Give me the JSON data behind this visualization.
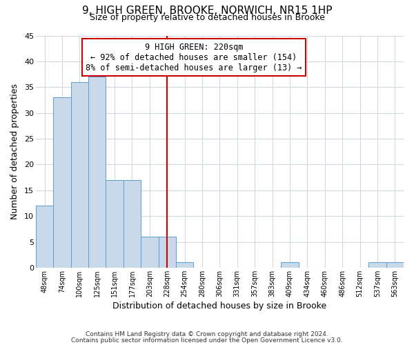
{
  "title": "9, HIGH GREEN, BROOKE, NORWICH, NR15 1HP",
  "subtitle": "Size of property relative to detached houses in Brooke",
  "xlabel": "Distribution of detached houses by size in Brooke",
  "ylabel": "Number of detached properties",
  "bin_labels": [
    "48sqm",
    "74sqm",
    "100sqm",
    "125sqm",
    "151sqm",
    "177sqm",
    "203sqm",
    "228sqm",
    "254sqm",
    "280sqm",
    "306sqm",
    "331sqm",
    "357sqm",
    "383sqm",
    "409sqm",
    "434sqm",
    "460sqm",
    "486sqm",
    "512sqm",
    "537sqm",
    "563sqm"
  ],
  "bar_heights": [
    12,
    33,
    36,
    37,
    17,
    17,
    6,
    6,
    1,
    0,
    0,
    0,
    0,
    0,
    1,
    0,
    0,
    0,
    0,
    1,
    1
  ],
  "bar_color": "#c8d9ea",
  "bar_edge_color": "#5b9bd5",
  "vline_x": 7,
  "vline_color": "#cc0000",
  "annotation_text": "9 HIGH GREEN: 220sqm\n← 92% of detached houses are smaller (154)\n8% of semi-detached houses are larger (13) →",
  "annotation_box_edgecolor": "#cc0000",
  "ylim": [
    0,
    45
  ],
  "yticks": [
    0,
    5,
    10,
    15,
    20,
    25,
    30,
    35,
    40,
    45
  ],
  "footer_line1": "Contains HM Land Registry data © Crown copyright and database right 2024.",
  "footer_line2": "Contains public sector information licensed under the Open Government Licence v3.0.",
  "plot_bg_color": "#ffffff",
  "fig_bg_color": "#ffffff",
  "grid_color": "#d0d8e0",
  "title_fontsize": 11,
  "subtitle_fontsize": 9
}
